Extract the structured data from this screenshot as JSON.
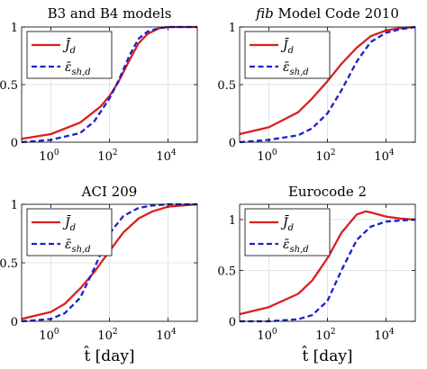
{
  "chart_data": [
    {
      "type": "line",
      "title_parts": [
        {
          "text": "B3 and B4 models",
          "italic": false
        }
      ],
      "xscale": "log",
      "xlim": [
        0.1,
        100000
      ],
      "ylim": [
        0,
        1
      ],
      "xticks": [
        {
          "value": 1,
          "label": "10",
          "exp": "0"
        },
        {
          "value": 100,
          "label": "10",
          "exp": "2"
        },
        {
          "value": 10000,
          "label": "10",
          "exp": "4"
        }
      ],
      "yticks": [
        {
          "value": 0,
          "label": "0"
        },
        {
          "value": 0.5,
          "label": "0.5"
        },
        {
          "value": 1,
          "label": "1"
        }
      ],
      "xlabel": "",
      "grid": true,
      "legend_position": "top-left",
      "series": [
        {
          "name": "J̄_d",
          "color": "#d92020",
          "dash": "solid",
          "x": [
            0.1,
            1,
            10,
            50,
            100,
            200,
            500,
            1000,
            2000,
            5000,
            10000,
            20000,
            100000
          ],
          "y": [
            0.03,
            0.07,
            0.17,
            0.31,
            0.4,
            0.52,
            0.72,
            0.86,
            0.94,
            0.99,
            1.0,
            1.0,
            1.0
          ]
        },
        {
          "name": "ε̄_sh,d",
          "color": "#1a22cc",
          "dash": "dashed",
          "x": [
            0.1,
            1,
            10,
            30,
            100,
            200,
            500,
            1000,
            2000,
            5000,
            10000,
            20000,
            100000
          ],
          "y": [
            0.0,
            0.02,
            0.08,
            0.18,
            0.38,
            0.53,
            0.76,
            0.9,
            0.96,
            0.99,
            1.0,
            1.0,
            1.0
          ]
        }
      ]
    },
    {
      "type": "line",
      "title_parts": [
        {
          "text": "fib",
          "italic": true
        },
        {
          "text": " Model Code 2010",
          "italic": false
        }
      ],
      "xscale": "log",
      "xlim": [
        0.1,
        100000
      ],
      "ylim": [
        0,
        1
      ],
      "xticks": [
        {
          "value": 1,
          "label": "10",
          "exp": "0"
        },
        {
          "value": 100,
          "label": "10",
          "exp": "2"
        },
        {
          "value": 10000,
          "label": "10",
          "exp": "4"
        }
      ],
      "yticks": [
        {
          "value": 0,
          "label": "0"
        },
        {
          "value": 0.5,
          "label": "0.5"
        },
        {
          "value": 1,
          "label": "1"
        }
      ],
      "xlabel": "",
      "grid": true,
      "legend_position": "top-left",
      "series": [
        {
          "name": "J̄_d",
          "color": "#d92020",
          "dash": "solid",
          "x": [
            0.1,
            1,
            10,
            30,
            100,
            300,
            1000,
            3000,
            10000,
            30000,
            100000
          ],
          "y": [
            0.07,
            0.13,
            0.26,
            0.38,
            0.53,
            0.68,
            0.82,
            0.92,
            0.97,
            0.99,
            1.0
          ]
        },
        {
          "name": "ε̄_sh,d",
          "color": "#1a22cc",
          "dash": "dashed",
          "x": [
            0.1,
            1,
            10,
            30,
            100,
            300,
            1000,
            3000,
            10000,
            30000,
            100000
          ],
          "y": [
            0.0,
            0.02,
            0.06,
            0.12,
            0.25,
            0.45,
            0.7,
            0.87,
            0.95,
            0.98,
            1.0
          ]
        }
      ]
    },
    {
      "type": "line",
      "title_parts": [
        {
          "text": "ACI 209",
          "italic": false
        }
      ],
      "xscale": "log",
      "xlim": [
        0.1,
        100000
      ],
      "ylim": [
        0,
        1
      ],
      "xticks": [
        {
          "value": 1,
          "label": "10",
          "exp": "0"
        },
        {
          "value": 100,
          "label": "10",
          "exp": "2"
        },
        {
          "value": 10000,
          "label": "10",
          "exp": "4"
        }
      ],
      "yticks": [
        {
          "value": 0,
          "label": "0"
        },
        {
          "value": 0.5,
          "label": "0.5"
        },
        {
          "value": 1,
          "label": "1"
        }
      ],
      "xlabel": "t̂ [day]",
      "grid": true,
      "legend_position": "top-left",
      "series": [
        {
          "name": "J̄_d",
          "color": "#d92020",
          "dash": "solid",
          "x": [
            0.1,
            1,
            3,
            10,
            30,
            100,
            300,
            1000,
            3000,
            10000,
            100000
          ],
          "y": [
            0.02,
            0.08,
            0.15,
            0.28,
            0.42,
            0.6,
            0.76,
            0.88,
            0.94,
            0.98,
            1.0
          ]
        },
        {
          "name": "ε̄_sh,d",
          "color": "#1a22cc",
          "dash": "dashed",
          "x": [
            0.1,
            1,
            3,
            10,
            30,
            100,
            300,
            1000,
            3000,
            10000,
            100000
          ],
          "y": [
            0.0,
            0.02,
            0.07,
            0.2,
            0.45,
            0.75,
            0.9,
            0.97,
            0.99,
            1.0,
            1.0
          ]
        }
      ]
    },
    {
      "type": "line",
      "title_parts": [
        {
          "text": "Eurocode 2",
          "italic": false
        }
      ],
      "xscale": "log",
      "xlim": [
        0.1,
        100000
      ],
      "ylim": [
        0,
        1.15
      ],
      "xticks": [
        {
          "value": 1,
          "label": "10",
          "exp": "0"
        },
        {
          "value": 100,
          "label": "10",
          "exp": "2"
        },
        {
          "value": 10000,
          "label": "10",
          "exp": "4"
        }
      ],
      "yticks": [
        {
          "value": 0,
          "label": "0"
        },
        {
          "value": 0.5,
          "label": "0.5"
        },
        {
          "value": 1,
          "label": "1"
        }
      ],
      "xlabel": "t̂ [day]",
      "grid": true,
      "legend_position": "top-left",
      "series": [
        {
          "name": "J̄_d",
          "color": "#d92020",
          "dash": "solid",
          "x": [
            0.1,
            1,
            10,
            30,
            100,
            300,
            1000,
            2000,
            3000,
            10000,
            30000,
            100000
          ],
          "y": [
            0.07,
            0.14,
            0.27,
            0.4,
            0.62,
            0.87,
            1.05,
            1.08,
            1.07,
            1.03,
            1.01,
            1.0
          ]
        },
        {
          "name": "ε̄_sh,d",
          "color": "#1a22cc",
          "dash": "dashed",
          "x": [
            0.1,
            1,
            10,
            30,
            100,
            300,
            1000,
            3000,
            10000,
            30000,
            100000
          ],
          "y": [
            0.0,
            0.0,
            0.02,
            0.06,
            0.2,
            0.5,
            0.8,
            0.93,
            0.98,
            0.99,
            1.0
          ]
        }
      ]
    }
  ]
}
